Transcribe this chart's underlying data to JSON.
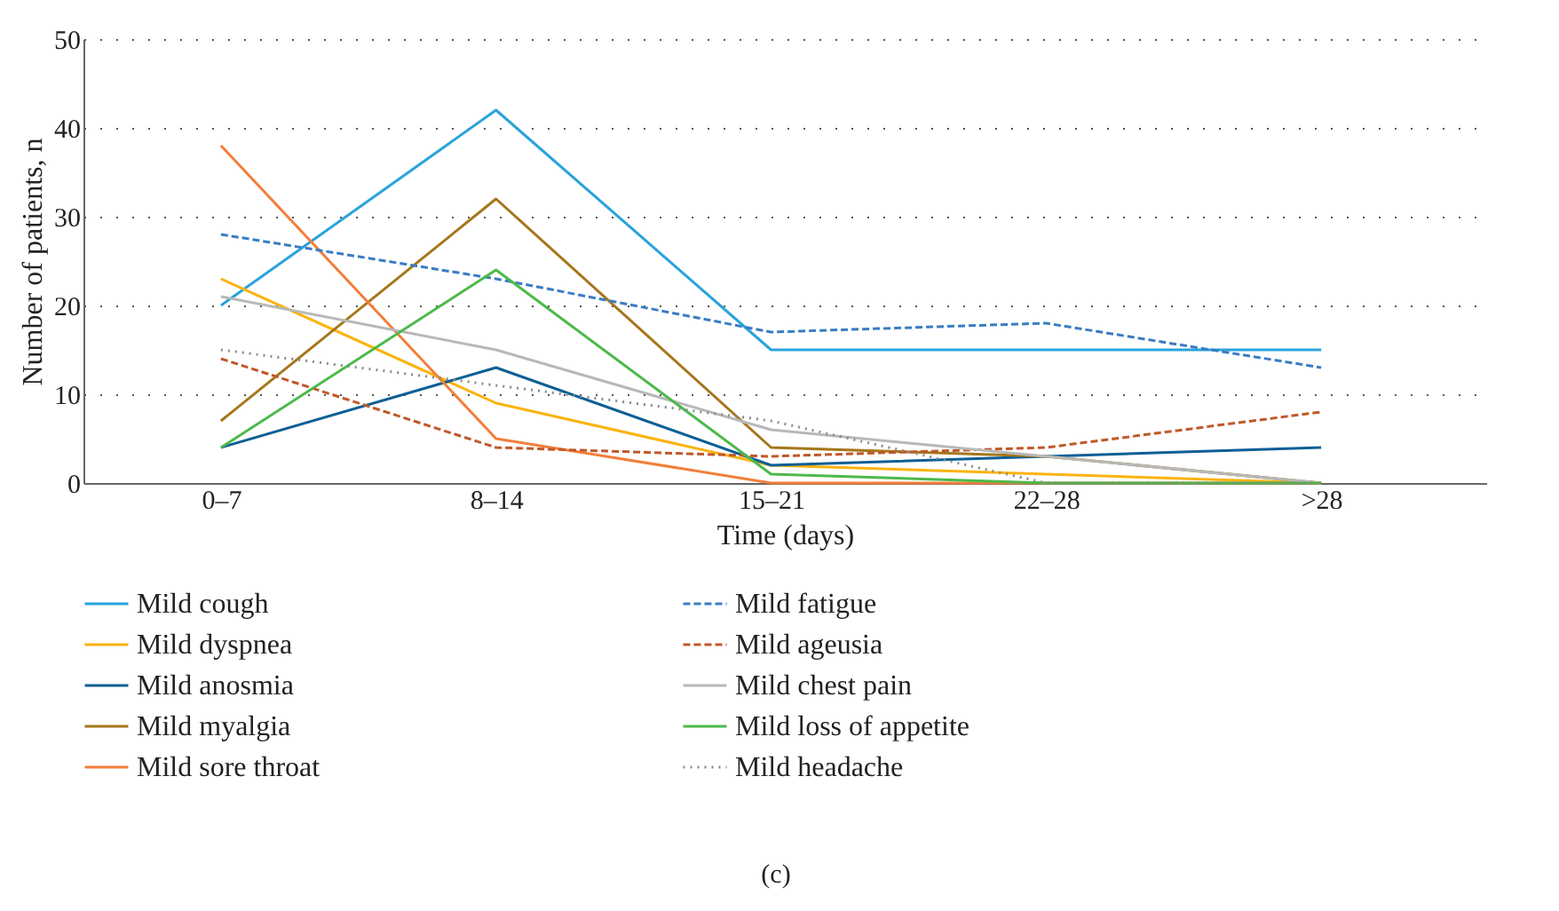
{
  "chart_data": {
    "type": "line",
    "xlabel": "Time (days)",
    "ylabel": "Number of patients, n",
    "categories": [
      "0–7",
      "8–14",
      "15–21",
      "22–28",
      ">28"
    ],
    "ylim": [
      0,
      50
    ],
    "yticks": [
      0,
      10,
      20,
      30,
      40,
      50
    ],
    "grid": "y",
    "legend": "bottom",
    "marker": "none",
    "annotations": [
      "(c)"
    ],
    "series": [
      {
        "name": "Mild cough",
        "color": "#29a3dc",
        "line_style": "solid",
        "values": [
          20,
          42,
          15,
          15,
          15
        ]
      },
      {
        "name": "Mild dyspnea",
        "color": "#fbb30f",
        "line_style": "solid",
        "values": [
          23,
          9,
          2,
          1,
          0
        ]
      },
      {
        "name": "Mild anosmia",
        "color": "#0d5f95",
        "line_style": "solid",
        "values": [
          4,
          13,
          2,
          3,
          4
        ]
      },
      {
        "name": "Mild myalgia",
        "color": "#a5761a",
        "line_style": "solid",
        "values": [
          7,
          32,
          4,
          3,
          0
        ]
      },
      {
        "name": "Mild sore throat",
        "color": "#f27e3b",
        "line_style": "solid",
        "values": [
          38,
          5,
          0,
          0,
          0
        ]
      },
      {
        "name": "Mild fatigue",
        "color": "#3a7cc4",
        "line_style": "dashed",
        "values": [
          28,
          23,
          17,
          18,
          13
        ]
      },
      {
        "name": "Mild ageusia",
        "color": "#c0582a",
        "line_style": "dashed",
        "values": [
          14,
          4,
          3,
          4,
          8
        ]
      },
      {
        "name": "Mild chest pain",
        "color": "#b8b8b8",
        "line_style": "solid",
        "values": [
          21,
          15,
          6,
          3,
          0
        ]
      },
      {
        "name": "Mild loss of appetite",
        "color": "#4cb94a",
        "line_style": "solid",
        "values": [
          4,
          24,
          1,
          0,
          0
        ]
      },
      {
        "name": "Mild headache",
        "color": "#8a8a8a",
        "line_style": "dotted",
        "values": [
          15,
          11,
          7,
          0,
          0
        ]
      }
    ]
  }
}
